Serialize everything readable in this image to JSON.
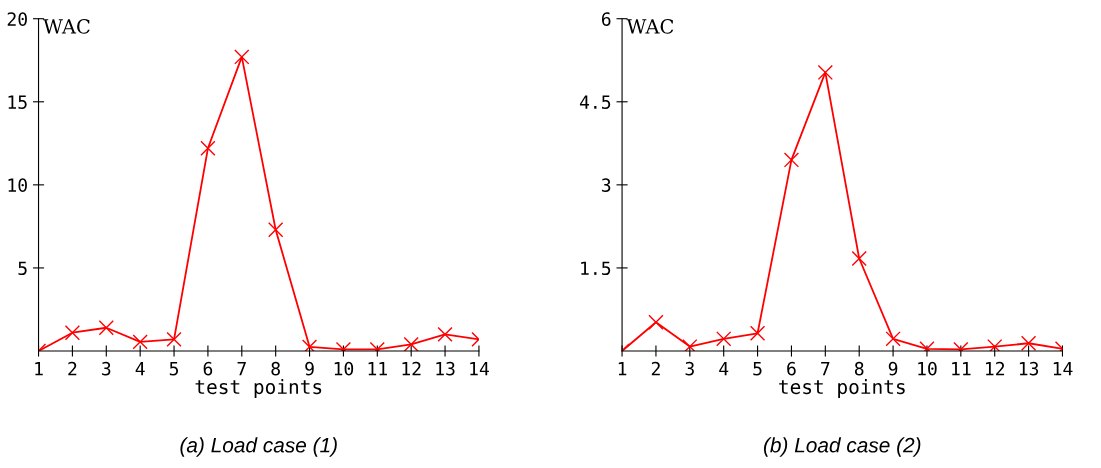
{
  "chart_data": [
    {
      "type": "line",
      "title": "(a) Load case (1)",
      "xlabel": "test points",
      "ylabel": "WAC",
      "x": [
        1,
        2,
        3,
        4,
        5,
        6,
        7,
        8,
        9,
        10,
        11,
        12,
        13,
        14
      ],
      "series": [
        {
          "color": "#ff0000",
          "values": [
            0,
            1.1,
            1.4,
            0.55,
            0.7,
            12.2,
            17.7,
            7.3,
            0.25,
            0.1,
            0.1,
            0.4,
            1.0,
            0.7
          ]
        }
      ],
      "xlim": [
        1,
        14
      ],
      "xticks": [
        1,
        2,
        3,
        4,
        5,
        6,
        7,
        8,
        9,
        10,
        11,
        12,
        13,
        14
      ],
      "ylim": [
        0,
        20
      ],
      "yticks": [
        5,
        10,
        15,
        20
      ],
      "marker": "cross",
      "line_style": "solid",
      "grid": false,
      "legend": false
    },
    {
      "type": "line",
      "title": "(b) Load case (2)",
      "xlabel": "test points",
      "ylabel": "WAC",
      "x": [
        1,
        2,
        3,
        4,
        5,
        6,
        7,
        8,
        9,
        10,
        11,
        12,
        13,
        14
      ],
      "series": [
        {
          "color": "#ff0000",
          "values": [
            0,
            0.52,
            0.08,
            0.22,
            0.32,
            3.45,
            5.03,
            1.67,
            0.22,
            0.04,
            0.03,
            0.08,
            0.14,
            0.04
          ]
        }
      ],
      "xlim": [
        1,
        14
      ],
      "xticks": [
        1,
        2,
        3,
        4,
        5,
        6,
        7,
        8,
        9,
        10,
        11,
        12,
        13,
        14
      ],
      "ylim": [
        0,
        6
      ],
      "yticks": [
        1.5,
        3,
        4.5,
        6
      ],
      "marker": "cross",
      "line_style": "solid",
      "grid": false,
      "legend": false
    }
  ]
}
